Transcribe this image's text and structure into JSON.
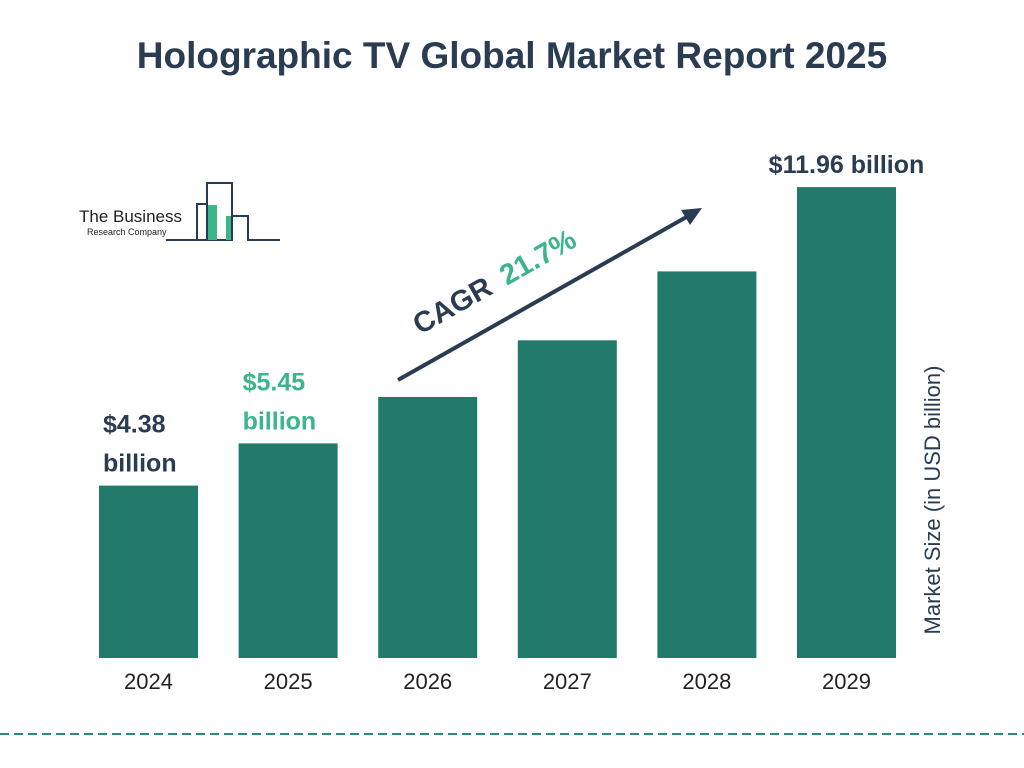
{
  "page": {
    "title": "Holographic TV Global Market Report 2025"
  },
  "logo": {
    "line1": "The Business",
    "line2": "Research Company"
  },
  "cagr": {
    "label": "CAGR",
    "value": "21.7%"
  },
  "colors": {
    "bar": "#227a6b",
    "title": "#2a3c52",
    "highlight": "#3bb58a",
    "divider": "#2a8a80"
  },
  "chart_data": {
    "type": "bar",
    "title": "Holographic TV Global Market Report 2025",
    "categories": [
      "2024",
      "2025",
      "2026",
      "2027",
      "2028",
      "2029"
    ],
    "values": [
      4.38,
      5.45,
      6.63,
      8.07,
      9.82,
      11.96
    ],
    "ylabel": "Market Size (in USD billion)",
    "ylim": [
      0,
      12.7
    ],
    "grid": false,
    "data_labels": [
      {
        "category": "2024",
        "lines": [
          "$4.38",
          "billion"
        ],
        "color": "#2a3c52"
      },
      {
        "category": "2025",
        "lines": [
          "$5.45",
          "billion"
        ],
        "color": "#3bb58a"
      },
      {
        "category": "2029",
        "lines": [
          "$11.96 billion"
        ],
        "color": "#2a3c52"
      }
    ]
  }
}
